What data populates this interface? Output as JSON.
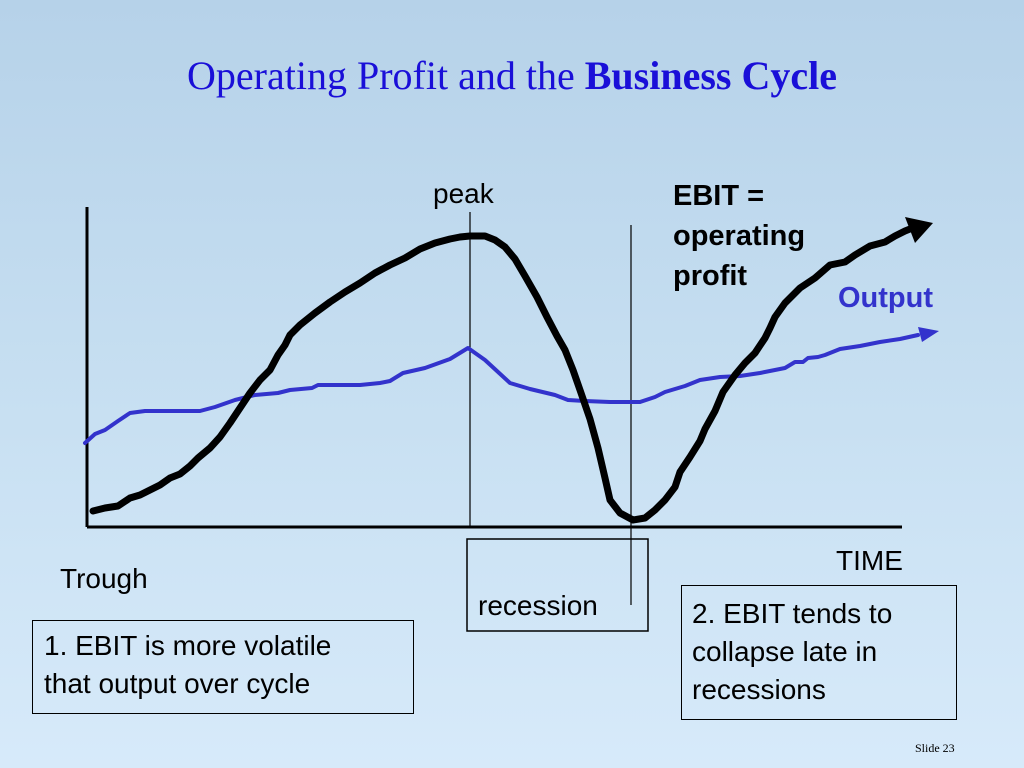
{
  "slide": {
    "title_regular": "Operating Profit and the ",
    "title_bold": "Business Cycle",
    "slide_number": "Slide 23"
  },
  "labels": {
    "peak": "peak",
    "ebit_line1": "EBIT =",
    "ebit_line2": "operating",
    "ebit_line3": "profit",
    "output": "Output",
    "time": "TIME",
    "trough": "Trough",
    "recession": "recession"
  },
  "notes": {
    "note1_line1": "1.  EBIT is more volatile",
    "note1_line2": "that output over cycle",
    "note2_line1": "2. EBIT tends to",
    "note2_line2": "collapse late in",
    "note2_line3": "recessions"
  },
  "colors": {
    "title": "#1a0fd8",
    "ebit_curve": "#000000",
    "output_curve": "#3333cc",
    "background_top": "#b6d2e9",
    "background_bottom": "#d7eafa"
  }
}
